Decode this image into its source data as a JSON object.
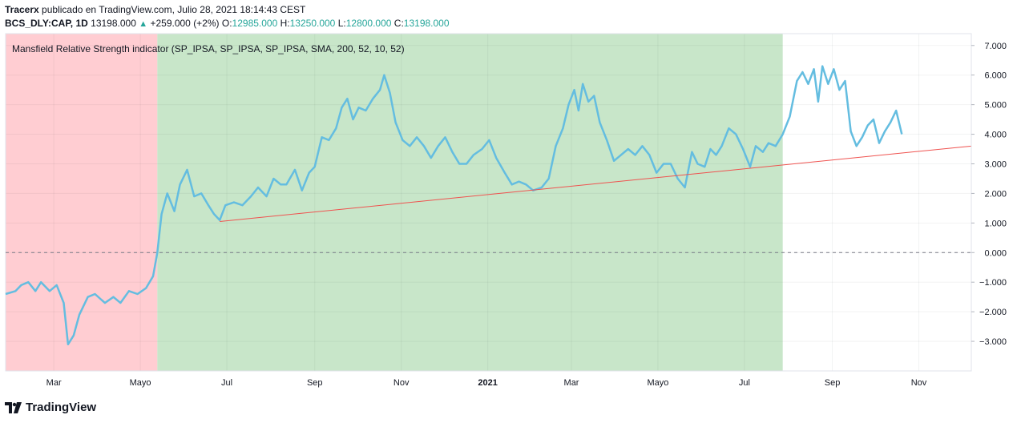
{
  "header": {
    "author": "Tracerx",
    "published_text": "publicado en TradingView.com, Julio 28, 2021 18:14:43 CEST",
    "symbol": "BCS_DLY:CAP, 1D",
    "last": "13198.000",
    "change": "+259.000 (+2%)",
    "o_label": "O:",
    "o_value": "12985.000",
    "h_label": "H:",
    "h_value": "13250.000",
    "l_label": "L:",
    "l_value": "12800.000",
    "c_label": "C:",
    "c_value": "13198.000"
  },
  "footer": {
    "brand": "TradingView"
  },
  "chart_data": {
    "type": "line",
    "title": "Mansfield Relative Strength indicator (SP_IPSA, SP_IPSA, SP_IPSA, SMA, 200, 52, 10, 52)",
    "x_tick_labels": [
      "Mar",
      "Mayo",
      "Jul",
      "Sep",
      "Nov",
      "2021",
      "Mar",
      "Mayo",
      "Jul",
      "Sep",
      "Nov"
    ],
    "y_tick_labels": [
      "7.000",
      "6.000",
      "5.000",
      "4.000",
      "3.000",
      "2.000",
      "1.000",
      "0.000",
      "−1.000",
      "−2.000",
      "−3.000"
    ],
    "y_ticks": [
      7,
      6,
      5,
      4,
      3,
      2,
      1,
      0,
      -1,
      -2,
      -3
    ],
    "ylim": [
      -4.0,
      7.4
    ],
    "date_range": [
      "2020-01-27",
      "2021-12-08"
    ],
    "zero_line": 0,
    "background_zones": [
      {
        "from": "2020-01-27",
        "to": "2020-05-13",
        "color": "#ffcdd2"
      },
      {
        "from": "2020-05-13",
        "to": "2021-07-28",
        "color": "#c8e6c9"
      }
    ],
    "series": [
      {
        "color": "#64bde0",
        "points": [
          [
            "2020-01-27",
            -1.4
          ],
          [
            "2020-02-03",
            -1.3
          ],
          [
            "2020-02-07",
            -1.1
          ],
          [
            "2020-02-12",
            -1.0
          ],
          [
            "2020-02-17",
            -1.3
          ],
          [
            "2020-02-21",
            -1.0
          ],
          [
            "2020-02-27",
            -1.3
          ],
          [
            "2020-03-03",
            -1.1
          ],
          [
            "2020-03-08",
            -1.7
          ],
          [
            "2020-03-11",
            -3.1
          ],
          [
            "2020-03-15",
            -2.8
          ],
          [
            "2020-03-19",
            -2.1
          ],
          [
            "2020-03-25",
            -1.5
          ],
          [
            "2020-03-30",
            -1.4
          ],
          [
            "2020-04-06",
            -1.7
          ],
          [
            "2020-04-12",
            -1.5
          ],
          [
            "2020-04-17",
            -1.7
          ],
          [
            "2020-04-23",
            -1.3
          ],
          [
            "2020-04-29",
            -1.4
          ],
          [
            "2020-05-05",
            -1.2
          ],
          [
            "2020-05-10",
            -0.8
          ],
          [
            "2020-05-13",
            0.0
          ],
          [
            "2020-05-16",
            1.3
          ],
          [
            "2020-05-20",
            2.0
          ],
          [
            "2020-05-25",
            1.4
          ],
          [
            "2020-05-29",
            2.3
          ],
          [
            "2020-06-03",
            2.8
          ],
          [
            "2020-06-08",
            1.9
          ],
          [
            "2020-06-13",
            2.0
          ],
          [
            "2020-06-18",
            1.6
          ],
          [
            "2020-06-22",
            1.3
          ],
          [
            "2020-06-26",
            1.1
          ],
          [
            "2020-06-30",
            1.6
          ],
          [
            "2020-07-06",
            1.7
          ],
          [
            "2020-07-12",
            1.6
          ],
          [
            "2020-07-18",
            1.9
          ],
          [
            "2020-07-23",
            2.2
          ],
          [
            "2020-07-29",
            1.9
          ],
          [
            "2020-08-03",
            2.5
          ],
          [
            "2020-08-08",
            2.3
          ],
          [
            "2020-08-12",
            2.3
          ],
          [
            "2020-08-18",
            2.8
          ],
          [
            "2020-08-23",
            2.1
          ],
          [
            "2020-08-28",
            2.7
          ],
          [
            "2020-09-01",
            2.9
          ],
          [
            "2020-09-06",
            3.9
          ],
          [
            "2020-09-11",
            3.8
          ],
          [
            "2020-09-16",
            4.2
          ],
          [
            "2020-09-20",
            4.9
          ],
          [
            "2020-09-24",
            5.2
          ],
          [
            "2020-09-28",
            4.5
          ],
          [
            "2020-10-02",
            4.9
          ],
          [
            "2020-10-07",
            4.8
          ],
          [
            "2020-10-12",
            5.2
          ],
          [
            "2020-10-17",
            5.5
          ],
          [
            "2020-10-20",
            6.0
          ],
          [
            "2020-10-24",
            5.4
          ],
          [
            "2020-10-28",
            4.4
          ],
          [
            "2020-11-02",
            3.8
          ],
          [
            "2020-11-07",
            3.6
          ],
          [
            "2020-11-12",
            3.9
          ],
          [
            "2020-11-17",
            3.6
          ],
          [
            "2020-11-22",
            3.2
          ],
          [
            "2020-11-27",
            3.6
          ],
          [
            "2020-12-02",
            3.9
          ],
          [
            "2020-12-07",
            3.4
          ],
          [
            "2020-12-12",
            3.0
          ],
          [
            "2020-12-17",
            3.0
          ],
          [
            "2020-12-22",
            3.3
          ],
          [
            "2020-12-28",
            3.5
          ],
          [
            "2021-01-02",
            3.8
          ],
          [
            "2021-01-07",
            3.2
          ],
          [
            "2021-01-13",
            2.7
          ],
          [
            "2021-01-18",
            2.3
          ],
          [
            "2021-01-23",
            2.4
          ],
          [
            "2021-01-28",
            2.3
          ],
          [
            "2021-02-02",
            2.1
          ],
          [
            "2021-02-08",
            2.2
          ],
          [
            "2021-02-13",
            2.5
          ],
          [
            "2021-02-18",
            3.6
          ],
          [
            "2021-02-23",
            4.2
          ],
          [
            "2021-02-27",
            5.0
          ],
          [
            "2021-03-03",
            5.5
          ],
          [
            "2021-03-06",
            4.8
          ],
          [
            "2021-03-09",
            5.7
          ],
          [
            "2021-03-13",
            5.1
          ],
          [
            "2021-03-17",
            5.3
          ],
          [
            "2021-03-21",
            4.4
          ],
          [
            "2021-03-26",
            3.8
          ],
          [
            "2021-03-31",
            3.1
          ],
          [
            "2021-04-05",
            3.3
          ],
          [
            "2021-04-10",
            3.5
          ],
          [
            "2021-04-15",
            3.3
          ],
          [
            "2021-04-20",
            3.6
          ],
          [
            "2021-04-25",
            3.3
          ],
          [
            "2021-04-30",
            2.7
          ],
          [
            "2021-05-05",
            3.0
          ],
          [
            "2021-05-10",
            3.0
          ],
          [
            "2021-05-15",
            2.5
          ],
          [
            "2021-05-20",
            2.2
          ],
          [
            "2021-05-25",
            3.4
          ],
          [
            "2021-05-29",
            3.0
          ],
          [
            "2021-06-03",
            2.9
          ],
          [
            "2021-06-07",
            3.5
          ],
          [
            "2021-06-11",
            3.3
          ],
          [
            "2021-06-15",
            3.6
          ],
          [
            "2021-06-20",
            4.2
          ],
          [
            "2021-06-25",
            4.0
          ],
          [
            "2021-06-30",
            3.5
          ],
          [
            "2021-07-05",
            2.9
          ],
          [
            "2021-07-09",
            3.6
          ],
          [
            "2021-07-14",
            3.4
          ],
          [
            "2021-07-18",
            3.7
          ],
          [
            "2021-07-23",
            3.6
          ],
          [
            "2021-07-28",
            4.0
          ],
          [
            "2021-08-02",
            4.6
          ],
          [
            "2021-08-07",
            5.8
          ],
          [
            "2021-08-11",
            6.1
          ],
          [
            "2021-08-15",
            5.7
          ],
          [
            "2021-08-19",
            6.2
          ],
          [
            "2021-08-22",
            5.1
          ],
          [
            "2021-08-25",
            6.3
          ],
          [
            "2021-08-29",
            5.7
          ],
          [
            "2021-09-02",
            6.2
          ],
          [
            "2021-09-06",
            5.5
          ],
          [
            "2021-09-10",
            5.8
          ],
          [
            "2021-09-14",
            4.1
          ],
          [
            "2021-09-18",
            3.6
          ],
          [
            "2021-09-22",
            3.9
          ],
          [
            "2021-09-26",
            4.3
          ],
          [
            "2021-09-30",
            4.5
          ],
          [
            "2021-10-04",
            3.7
          ],
          [
            "2021-10-08",
            4.1
          ],
          [
            "2021-10-12",
            4.4
          ],
          [
            "2021-10-16",
            4.8
          ],
          [
            "2021-10-20",
            4.0
          ]
        ]
      }
    ],
    "trendlines": [
      {
        "color": "#ef5350",
        "points": [
          [
            "2020-06-26",
            1.05
          ],
          [
            "2021-12-08",
            3.6
          ]
        ]
      }
    ]
  }
}
